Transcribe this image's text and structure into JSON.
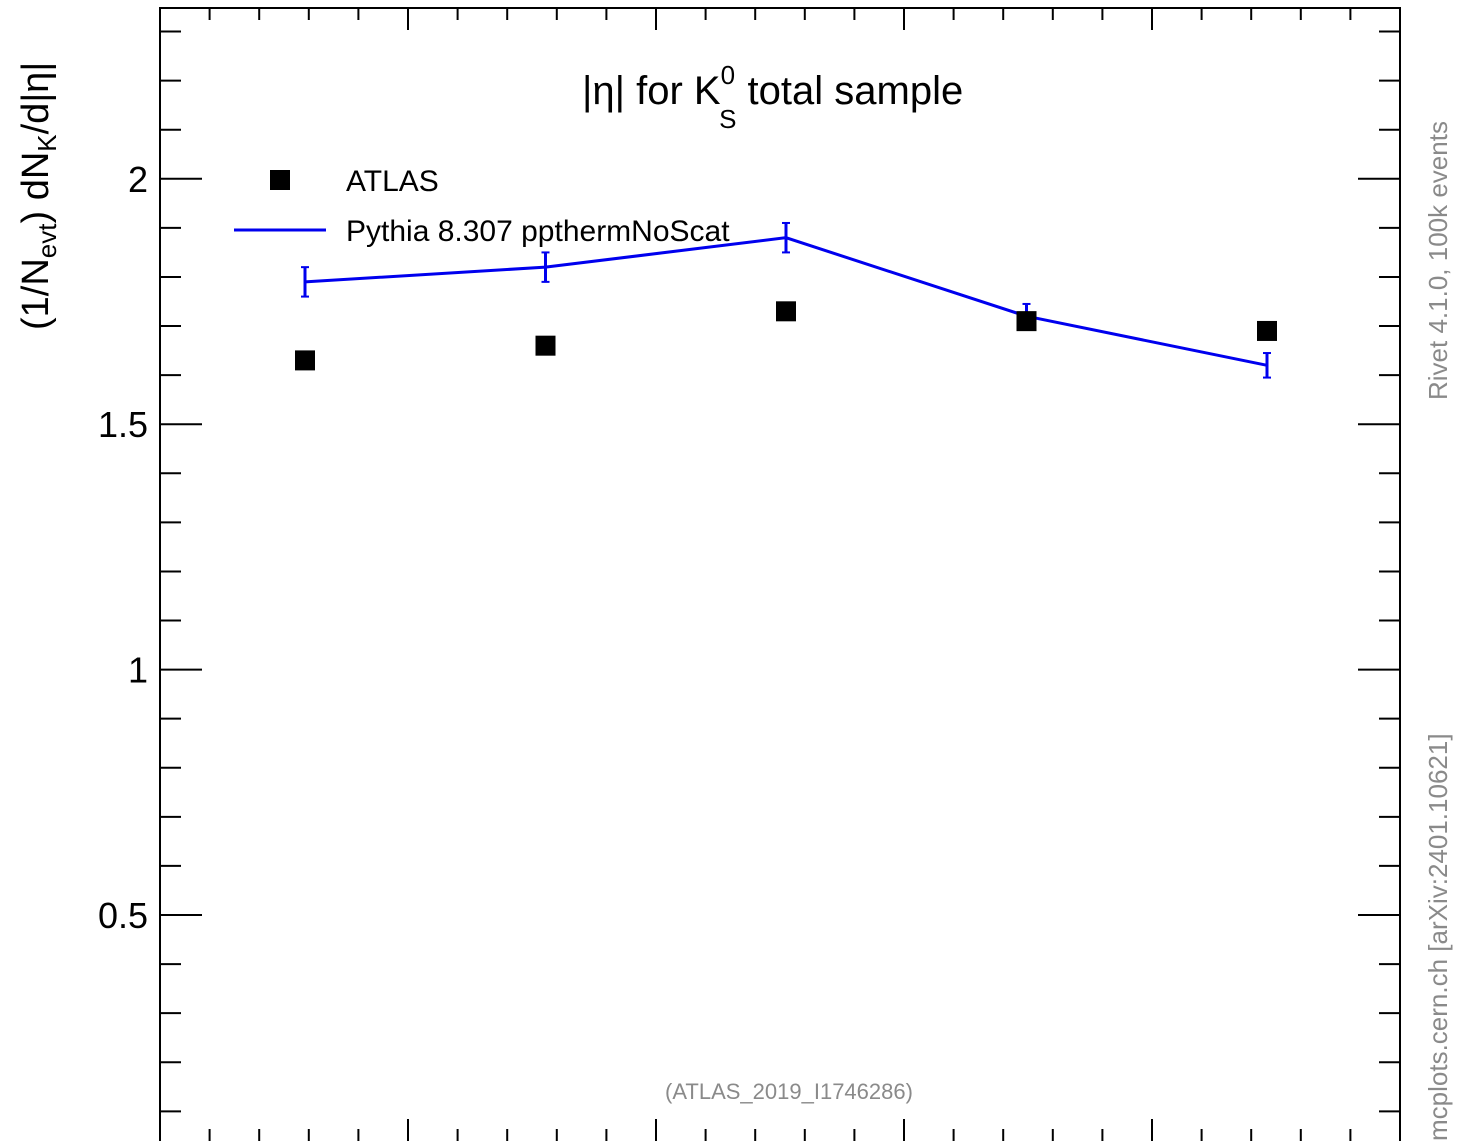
{
  "chart_data": {
    "type": "line",
    "title": {
      "main": "|η| for K",
      "sup": "0",
      "sub": "S",
      "rest": " total sample"
    },
    "ylabel": {
      "p1": "(1/N",
      "s1": "evt",
      "p2": ") dN",
      "s2": "K",
      "p3": "/d|η|"
    },
    "ylim": [
      0,
      4.7
    ],
    "y_ticks": [
      "0.5",
      "1",
      "1.5",
      "2",
      "2.5",
      "3",
      "3.5",
      "4",
      "4.5"
    ],
    "x": [
      0.25,
      0.75,
      1.25,
      1.75,
      2.25
    ],
    "series": [
      {
        "name": "ATLAS",
        "marker": "square",
        "color": "#000000",
        "values": [
          1.63,
          1.66,
          1.73,
          1.71,
          1.69
        ]
      },
      {
        "name": "Pythia 8.307 ppthermNoScat",
        "marker": "line",
        "color": "#0000ee",
        "values": [
          1.79,
          1.82,
          1.88,
          1.72,
          1.62
        ],
        "errors": [
          0.03,
          0.03,
          0.03,
          0.025,
          0.025
        ]
      }
    ],
    "side_text_top": "Rivet 4.1.0,  100k events",
    "side_text_bottom": "mcplots.cern.ch [arXiv:2401.10621]",
    "ref_label": "(ATLAS_2019_I1746286)"
  },
  "colors": {
    "data": "#000000",
    "mc": "#0000ee",
    "annotation": "#8a8a8a"
  }
}
